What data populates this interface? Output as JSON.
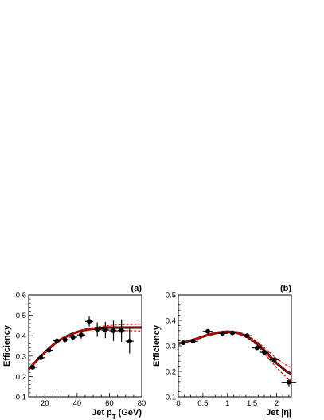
{
  "chart_data": [
    {
      "type": "scatter",
      "panel_label": "(a)",
      "xlabel": "Jet p",
      "xlabel_sub": "T",
      "xlabel_unit": "(GeV)",
      "ylabel": "Efficiency",
      "xlim": [
        10,
        80
      ],
      "ylim": [
        0.1,
        0.6
      ],
      "x_ticks": [
        20,
        40,
        60,
        80
      ],
      "y_ticks": [
        0.1,
        0.2,
        0.3,
        0.4,
        0.5,
        0.6
      ],
      "y_tick_labels": [
        "0.1",
        "0.2",
        "0.3",
        "0.4",
        "0.5",
        "0.6"
      ],
      "grid": false,
      "series": [
        {
          "role": "data",
          "color": "#000000",
          "points": [
            {
              "x": 12.5,
              "y": 0.245,
              "xerr": 2.5,
              "yerr": 0.01
            },
            {
              "x": 17.5,
              "y": 0.292,
              "xerr": 2.5,
              "yerr": 0.008
            },
            {
              "x": 22.5,
              "y": 0.328,
              "xerr": 2.5,
              "yerr": 0.01
            },
            {
              "x": 27.5,
              "y": 0.375,
              "xerr": 2.5,
              "yerr": 0.01
            },
            {
              "x": 32.5,
              "y": 0.38,
              "xerr": 2.5,
              "yerr": 0.012
            },
            {
              "x": 37.5,
              "y": 0.393,
              "xerr": 2.5,
              "yerr": 0.015
            },
            {
              "x": 42.5,
              "y": 0.404,
              "xerr": 2.5,
              "yerr": 0.018
            },
            {
              "x": 47.5,
              "y": 0.47,
              "xerr": 2.5,
              "yerr": 0.025
            },
            {
              "x": 52.5,
              "y": 0.43,
              "xerr": 2.5,
              "yerr": 0.035
            },
            {
              "x": 57.5,
              "y": 0.428,
              "xerr": 2.5,
              "yerr": 0.04
            },
            {
              "x": 62.5,
              "y": 0.424,
              "xerr": 2.5,
              "yerr": 0.05
            },
            {
              "x": 67.5,
              "y": 0.425,
              "xerr": 2.5,
              "yerr": 0.055
            },
            {
              "x": 72.5,
              "y": 0.373,
              "xerr": 2.5,
              "yerr": 0.06
            }
          ]
        },
        {
          "role": "fit",
          "color": "#000000",
          "x": [
            10,
            14,
            18,
            22,
            26,
            30,
            34,
            38,
            42,
            46,
            50,
            55,
            60,
            65,
            70,
            75,
            80
          ],
          "y": [
            0.235,
            0.27,
            0.302,
            0.333,
            0.36,
            0.382,
            0.399,
            0.413,
            0.423,
            0.43,
            0.435,
            0.438,
            0.44,
            0.44,
            0.44,
            0.44,
            0.44
          ]
        },
        {
          "role": "fit-upper",
          "color": "#dd0000",
          "x": [
            10,
            14,
            18,
            22,
            26,
            30,
            34,
            38,
            42,
            46,
            50,
            55,
            60,
            65,
            70,
            75,
            80
          ],
          "y": [
            0.24,
            0.274,
            0.306,
            0.336,
            0.362,
            0.385,
            0.402,
            0.416,
            0.426,
            0.434,
            0.44,
            0.446,
            0.45,
            0.453,
            0.455,
            0.456,
            0.457
          ]
        },
        {
          "role": "fit-lower",
          "color": "#dd0000",
          "x": [
            10,
            14,
            18,
            22,
            26,
            30,
            34,
            38,
            42,
            46,
            50,
            55,
            60,
            65,
            70,
            75,
            80
          ],
          "y": [
            0.23,
            0.266,
            0.298,
            0.33,
            0.357,
            0.379,
            0.396,
            0.409,
            0.419,
            0.426,
            0.43,
            0.431,
            0.429,
            0.427,
            0.425,
            0.424,
            0.423
          ]
        }
      ]
    },
    {
      "type": "scatter",
      "panel_label": "(b)",
      "xlabel": "Jet |η|",
      "ylabel": "Efficiency",
      "xlim": [
        0,
        2.3
      ],
      "ylim": [
        0.1,
        0.5
      ],
      "x_ticks": [
        0,
        0.5,
        1,
        1.5,
        2
      ],
      "x_tick_labels": [
        "0",
        "0.5",
        "1",
        "1.5",
        "2"
      ],
      "y_ticks": [
        0.1,
        0.2,
        0.3,
        0.4,
        0.5
      ],
      "y_tick_labels": [
        "0.1",
        "0.2",
        "0.3",
        "0.4",
        "0.5"
      ],
      "grid": false,
      "series": [
        {
          "role": "data",
          "color": "#000000",
          "points": [
            {
              "x": 0.1,
              "y": 0.312,
              "xerr": 0.1,
              "yerr": 0.005
            },
            {
              "x": 0.3,
              "y": 0.318,
              "xerr": 0.1,
              "yerr": 0.005
            },
            {
              "x": 0.6,
              "y": 0.357,
              "xerr": 0.1,
              "yerr": 0.006
            },
            {
              "x": 0.9,
              "y": 0.349,
              "xerr": 0.1,
              "yerr": 0.006
            },
            {
              "x": 1.1,
              "y": 0.351,
              "xerr": 0.1,
              "yerr": 0.006
            },
            {
              "x": 1.4,
              "y": 0.34,
              "xerr": 0.1,
              "yerr": 0.008
            },
            {
              "x": 1.6,
              "y": 0.292,
              "xerr": 0.1,
              "yerr": 0.008
            },
            {
              "x": 1.75,
              "y": 0.275,
              "xerr": 0.1,
              "yerr": 0.01
            },
            {
              "x": 1.95,
              "y": 0.245,
              "xerr": 0.1,
              "yerr": 0.01
            },
            {
              "x": 2.25,
              "y": 0.157,
              "xerr": 0.15,
              "yerr": 0.015
            }
          ]
        },
        {
          "role": "fit",
          "color": "#000000",
          "x": [
            0,
            0.2,
            0.4,
            0.6,
            0.8,
            1.0,
            1.2,
            1.4,
            1.6,
            1.8,
            2.0,
            2.2,
            2.3
          ],
          "y": [
            0.308,
            0.318,
            0.33,
            0.343,
            0.352,
            0.356,
            0.352,
            0.337,
            0.31,
            0.272,
            0.232,
            0.2,
            0.19
          ]
        },
        {
          "role": "fit-upper",
          "color": "#dd0000",
          "x": [
            0,
            0.2,
            0.4,
            0.6,
            0.8,
            1.0,
            1.2,
            1.4,
            1.6,
            1.8,
            2.0,
            2.2,
            2.3
          ],
          "y": [
            0.31,
            0.32,
            0.333,
            0.346,
            0.355,
            0.359,
            0.356,
            0.342,
            0.318,
            0.284,
            0.25,
            0.224,
            0.215
          ]
        },
        {
          "role": "fit-lower",
          "color": "#dd0000",
          "x": [
            0,
            0.2,
            0.4,
            0.6,
            0.8,
            1.0,
            1.2,
            1.4,
            1.6,
            1.8,
            2.0,
            2.2,
            2.3
          ],
          "y": [
            0.306,
            0.316,
            0.327,
            0.34,
            0.349,
            0.353,
            0.348,
            0.332,
            0.302,
            0.26,
            0.214,
            0.176,
            0.165
          ]
        }
      ]
    }
  ]
}
